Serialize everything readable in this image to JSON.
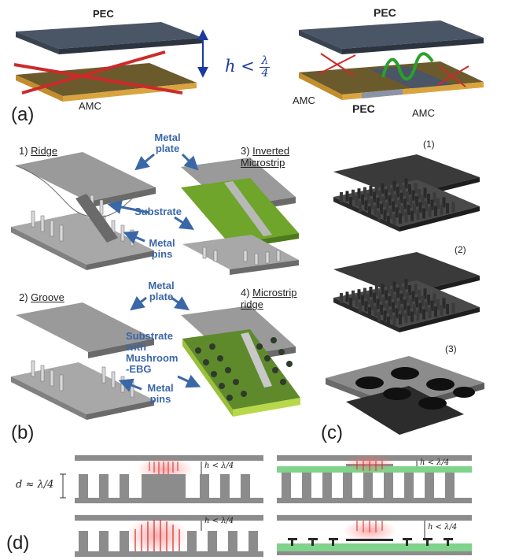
{
  "panel_a": {
    "label": "(a)",
    "left": {
      "top_label": "PEC",
      "bottom_label": "AMC",
      "height_label": "h <",
      "frac_num": "λ",
      "frac_den": "4"
    },
    "right": {
      "top_label": "PEC",
      "left_label": "AMC",
      "center_label": "PEC",
      "right_label": "AMC"
    }
  },
  "panel_b": {
    "label": "(b)",
    "t1_num": "1) ",
    "t1_word": "Ridge",
    "t2_num": "2) ",
    "t2_word": "Groove",
    "t3_num": "3) ",
    "t3_word1": "Inverted",
    "t3_word2": "Microstrip",
    "t4_num": "4) ",
    "t4_word1": "Microstrip",
    "t4_word2": "ridge",
    "metal_plate_1a": "Metal",
    "metal_plate_1b": "plate",
    "metal_plate_2a": "Metal",
    "metal_plate_2b": "plate",
    "substrate": "Substrate",
    "metal_pins_1a": "Metal",
    "metal_pins_1b": "pins",
    "mush_1": "Substrate",
    "mush_2": "with",
    "mush_3": "Mushroom",
    "mush_4": "-EBG",
    "metal_pins_2a": "Metal",
    "metal_pins_2b": "pins"
  },
  "panel_c": {
    "label": "(c)",
    "n1": "(1)",
    "n2": "(2)",
    "n3": "(3)"
  },
  "panel_d": {
    "label": "(d)",
    "d_label": "d ≈ λ/4",
    "h_label": "h < λ/4"
  },
  "colors": {
    "plate": "#3b4656",
    "amc": "#6b5a2c",
    "gold": "#d9a440",
    "green": "#8bbf3a",
    "arrow": "#3a67a8",
    "red": "#cc2a2a",
    "wave": "#2aa02a"
  }
}
